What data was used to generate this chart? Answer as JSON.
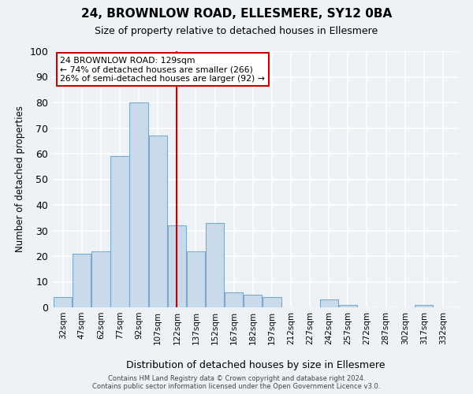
{
  "title": "24, BROWNLOW ROAD, ELLESMERE, SY12 0BA",
  "subtitle": "Size of property relative to detached houses in Ellesmere",
  "xlabel": "Distribution of detached houses by size in Ellesmere",
  "ylabel": "Number of detached properties",
  "bar_color": "#c9daea",
  "bar_edge_color": "#7aaac8",
  "background_color": "#eef2f7",
  "grid_color": "#ffffff",
  "bin_labels": [
    "32sqm",
    "47sqm",
    "62sqm",
    "77sqm",
    "92sqm",
    "107sqm",
    "122sqm",
    "137sqm",
    "152sqm",
    "167sqm",
    "182sqm",
    "197sqm",
    "212sqm",
    "227sqm",
    "242sqm",
    "257sqm",
    "272sqm",
    "287sqm",
    "302sqm",
    "317sqm",
    "332sqm"
  ],
  "bar_heights": [
    4,
    21,
    22,
    59,
    80,
    67,
    32,
    22,
    33,
    6,
    5,
    4,
    0,
    0,
    3,
    1,
    0,
    0,
    0,
    1,
    0
  ],
  "bin_starts": [
    32,
    47,
    62,
    77,
    92,
    107,
    122,
    137,
    152,
    167,
    182,
    197,
    212,
    227,
    242,
    257,
    272,
    287,
    302,
    317,
    332
  ],
  "bin_width": 15,
  "vline_x": 129,
  "vline_color": "#cc0000",
  "ylim": [
    0,
    100
  ],
  "yticks": [
    0,
    10,
    20,
    30,
    40,
    50,
    60,
    70,
    80,
    90,
    100
  ],
  "annotation_title": "24 BROWNLOW ROAD: 129sqm",
  "annotation_line1": "← 74% of detached houses are smaller (266)",
  "annotation_line2": "26% of semi-detached houses are larger (92) →",
  "annotation_box_color": "#ffffff",
  "annotation_box_edge": "#cc0000",
  "footer_line1": "Contains HM Land Registry data © Crown copyright and database right 2024.",
  "footer_line2": "Contains public sector information licensed under the Open Government Licence v3.0."
}
